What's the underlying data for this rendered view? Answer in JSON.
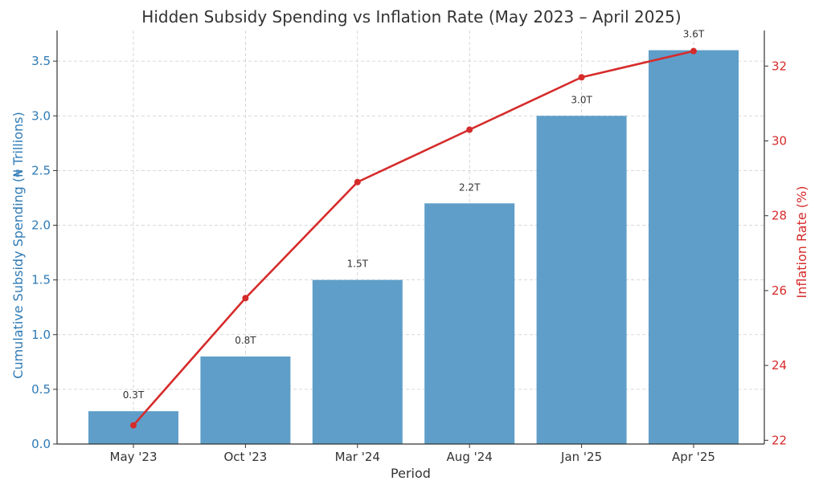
{
  "chart_data": {
    "type": "bar",
    "title": "Hidden Subsidy Spending vs Inflation Rate (May 2023 – April 2025)",
    "xlabel": "Period",
    "ylabel": "Cumulative Subsidy Spending (₦ Trillions)",
    "y2label": "Inflation Rate (%)",
    "categories": [
      "May '23",
      "Oct '23",
      "Mar '24",
      "Aug '24",
      "Jan '25",
      "Apr '25"
    ],
    "series": [
      {
        "type": "bar",
        "values": [
          0.3,
          0.8,
          1.5,
          2.2,
          3.0,
          3.6
        ],
        "data_labels": [
          "0.3T",
          "0.8T",
          "1.5T",
          "2.2T",
          "3.0T",
          "3.6T"
        ],
        "color": "#5f9ec9",
        "axis": "left"
      },
      {
        "type": "line",
        "values": [
          22.4,
          25.8,
          28.9,
          30.3,
          31.7,
          32.4
        ],
        "color": "#d62b2b",
        "axis": "right"
      }
    ],
    "ylim": [
      0,
      3.78
    ],
    "y2lim": [
      21.9,
      32.95
    ],
    "yticks": [
      0.0,
      0.5,
      1.0,
      1.5,
      2.0,
      2.5,
      3.0,
      3.5
    ],
    "ytick_labels": [
      "0.0",
      "0.5",
      "1.0",
      "1.5",
      "2.0",
      "2.5",
      "3.0",
      "3.5"
    ],
    "y2ticks": [
      22,
      24,
      26,
      28,
      30,
      32
    ],
    "y2tick_labels": [
      "22",
      "24",
      "26",
      "28",
      "30",
      "32"
    ],
    "grid": true,
    "left_axis_color": "#2e7ab5",
    "right_axis_color": "#d62b2b",
    "text_color": "#333333"
  }
}
